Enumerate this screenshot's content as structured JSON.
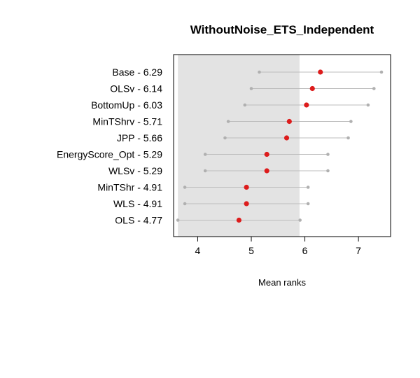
{
  "chart_data": {
    "type": "scatter",
    "title": "WithoutNoise_ETS_Independent",
    "xlabel": "Mean ranks",
    "ylabel": "",
    "xlim": [
      3.55,
      7.6
    ],
    "x_ticks": [
      "4",
      "5",
      "6",
      "7"
    ],
    "x_tick_values": [
      4,
      5,
      6,
      7
    ],
    "critical_interval": [
      3.63,
      5.9
    ],
    "colors": {
      "mean_point": "#dd1c1c",
      "interval_line": "#bdbdbd",
      "interval_end": "#b0b0b0",
      "shaded_region": "#e3e3e3"
    },
    "methods": [
      {
        "label": "Base - 6.29",
        "mean": 6.29,
        "lower": 5.15,
        "upper": 7.43
      },
      {
        "label": "OLSv - 6.14",
        "mean": 6.14,
        "lower": 5.0,
        "upper": 7.29
      },
      {
        "label": "BottomUp - 6.03",
        "mean": 6.03,
        "lower": 4.88,
        "upper": 7.18
      },
      {
        "label": "MinTShrv - 5.71",
        "mean": 5.71,
        "lower": 4.57,
        "upper": 6.86
      },
      {
        "label": "JPP - 5.66",
        "mean": 5.66,
        "lower": 4.51,
        "upper": 6.81
      },
      {
        "label": "EnergyScore_Opt - 5.29",
        "mean": 5.29,
        "lower": 4.14,
        "upper": 6.43
      },
      {
        "label": "WLSv - 5.29",
        "mean": 5.29,
        "lower": 4.14,
        "upper": 6.43
      },
      {
        "label": "MinTShr - 4.91",
        "mean": 4.91,
        "lower": 3.76,
        "upper": 6.06
      },
      {
        "label": "WLS - 4.91",
        "mean": 4.91,
        "lower": 3.76,
        "upper": 6.06
      },
      {
        "label": "OLS - 4.77",
        "mean": 4.77,
        "lower": 3.63,
        "upper": 5.91
      }
    ]
  }
}
